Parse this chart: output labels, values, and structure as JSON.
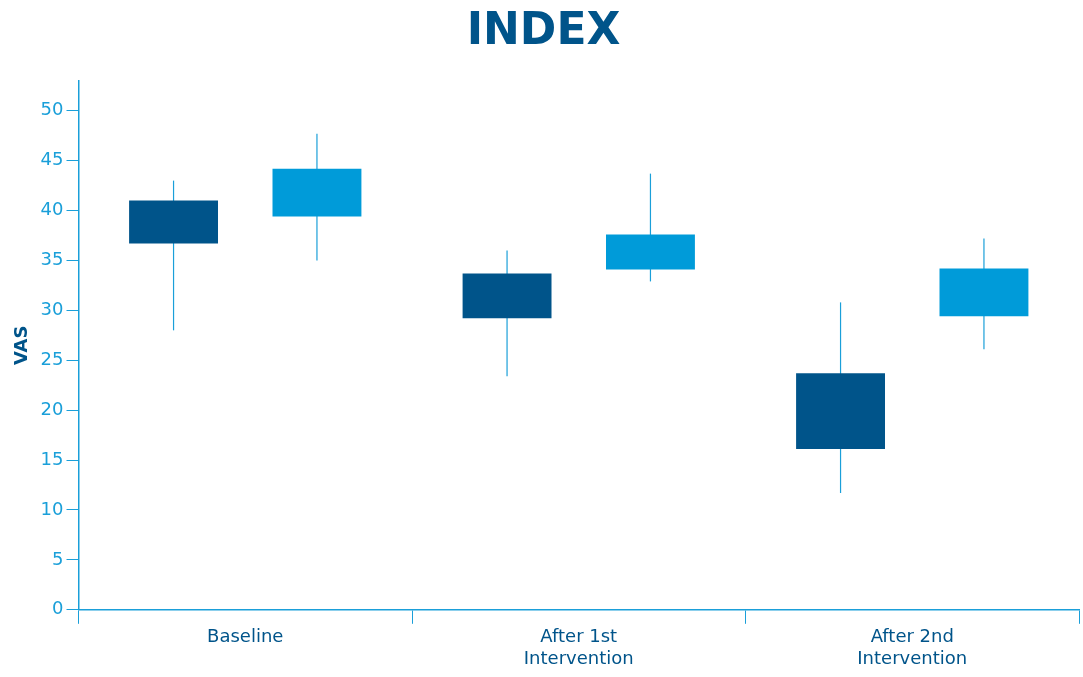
{
  "chart_data": {
    "type": "candlestick",
    "title": "INDEX",
    "ylabel": "VAS",
    "categories": [
      "Baseline",
      "After 1st Intervention",
      "After 2nd Intervention"
    ],
    "series": [
      {
        "color": "#00548a",
        "ohlc": [
          [
            36.7,
            43,
            28,
            41
          ],
          [
            29.2,
            36,
            23.4,
            33.7
          ],
          [
            16.1,
            30.8,
            11.7,
            23.7
          ]
        ]
      },
      {
        "color": "#009bd9",
        "ohlc": [
          [
            39.4,
            47.7,
            35,
            44.2
          ],
          [
            34.1,
            43.7,
            32.9,
            37.6
          ],
          [
            29.4,
            37.2,
            26.1,
            34.2
          ]
        ]
      }
    ],
    "ylim": [
      0,
      53
    ],
    "yticks": [
      0,
      5,
      10,
      15,
      20,
      25,
      30,
      35,
      40,
      45,
      50
    ],
    "grid": false,
    "legend": false
  }
}
